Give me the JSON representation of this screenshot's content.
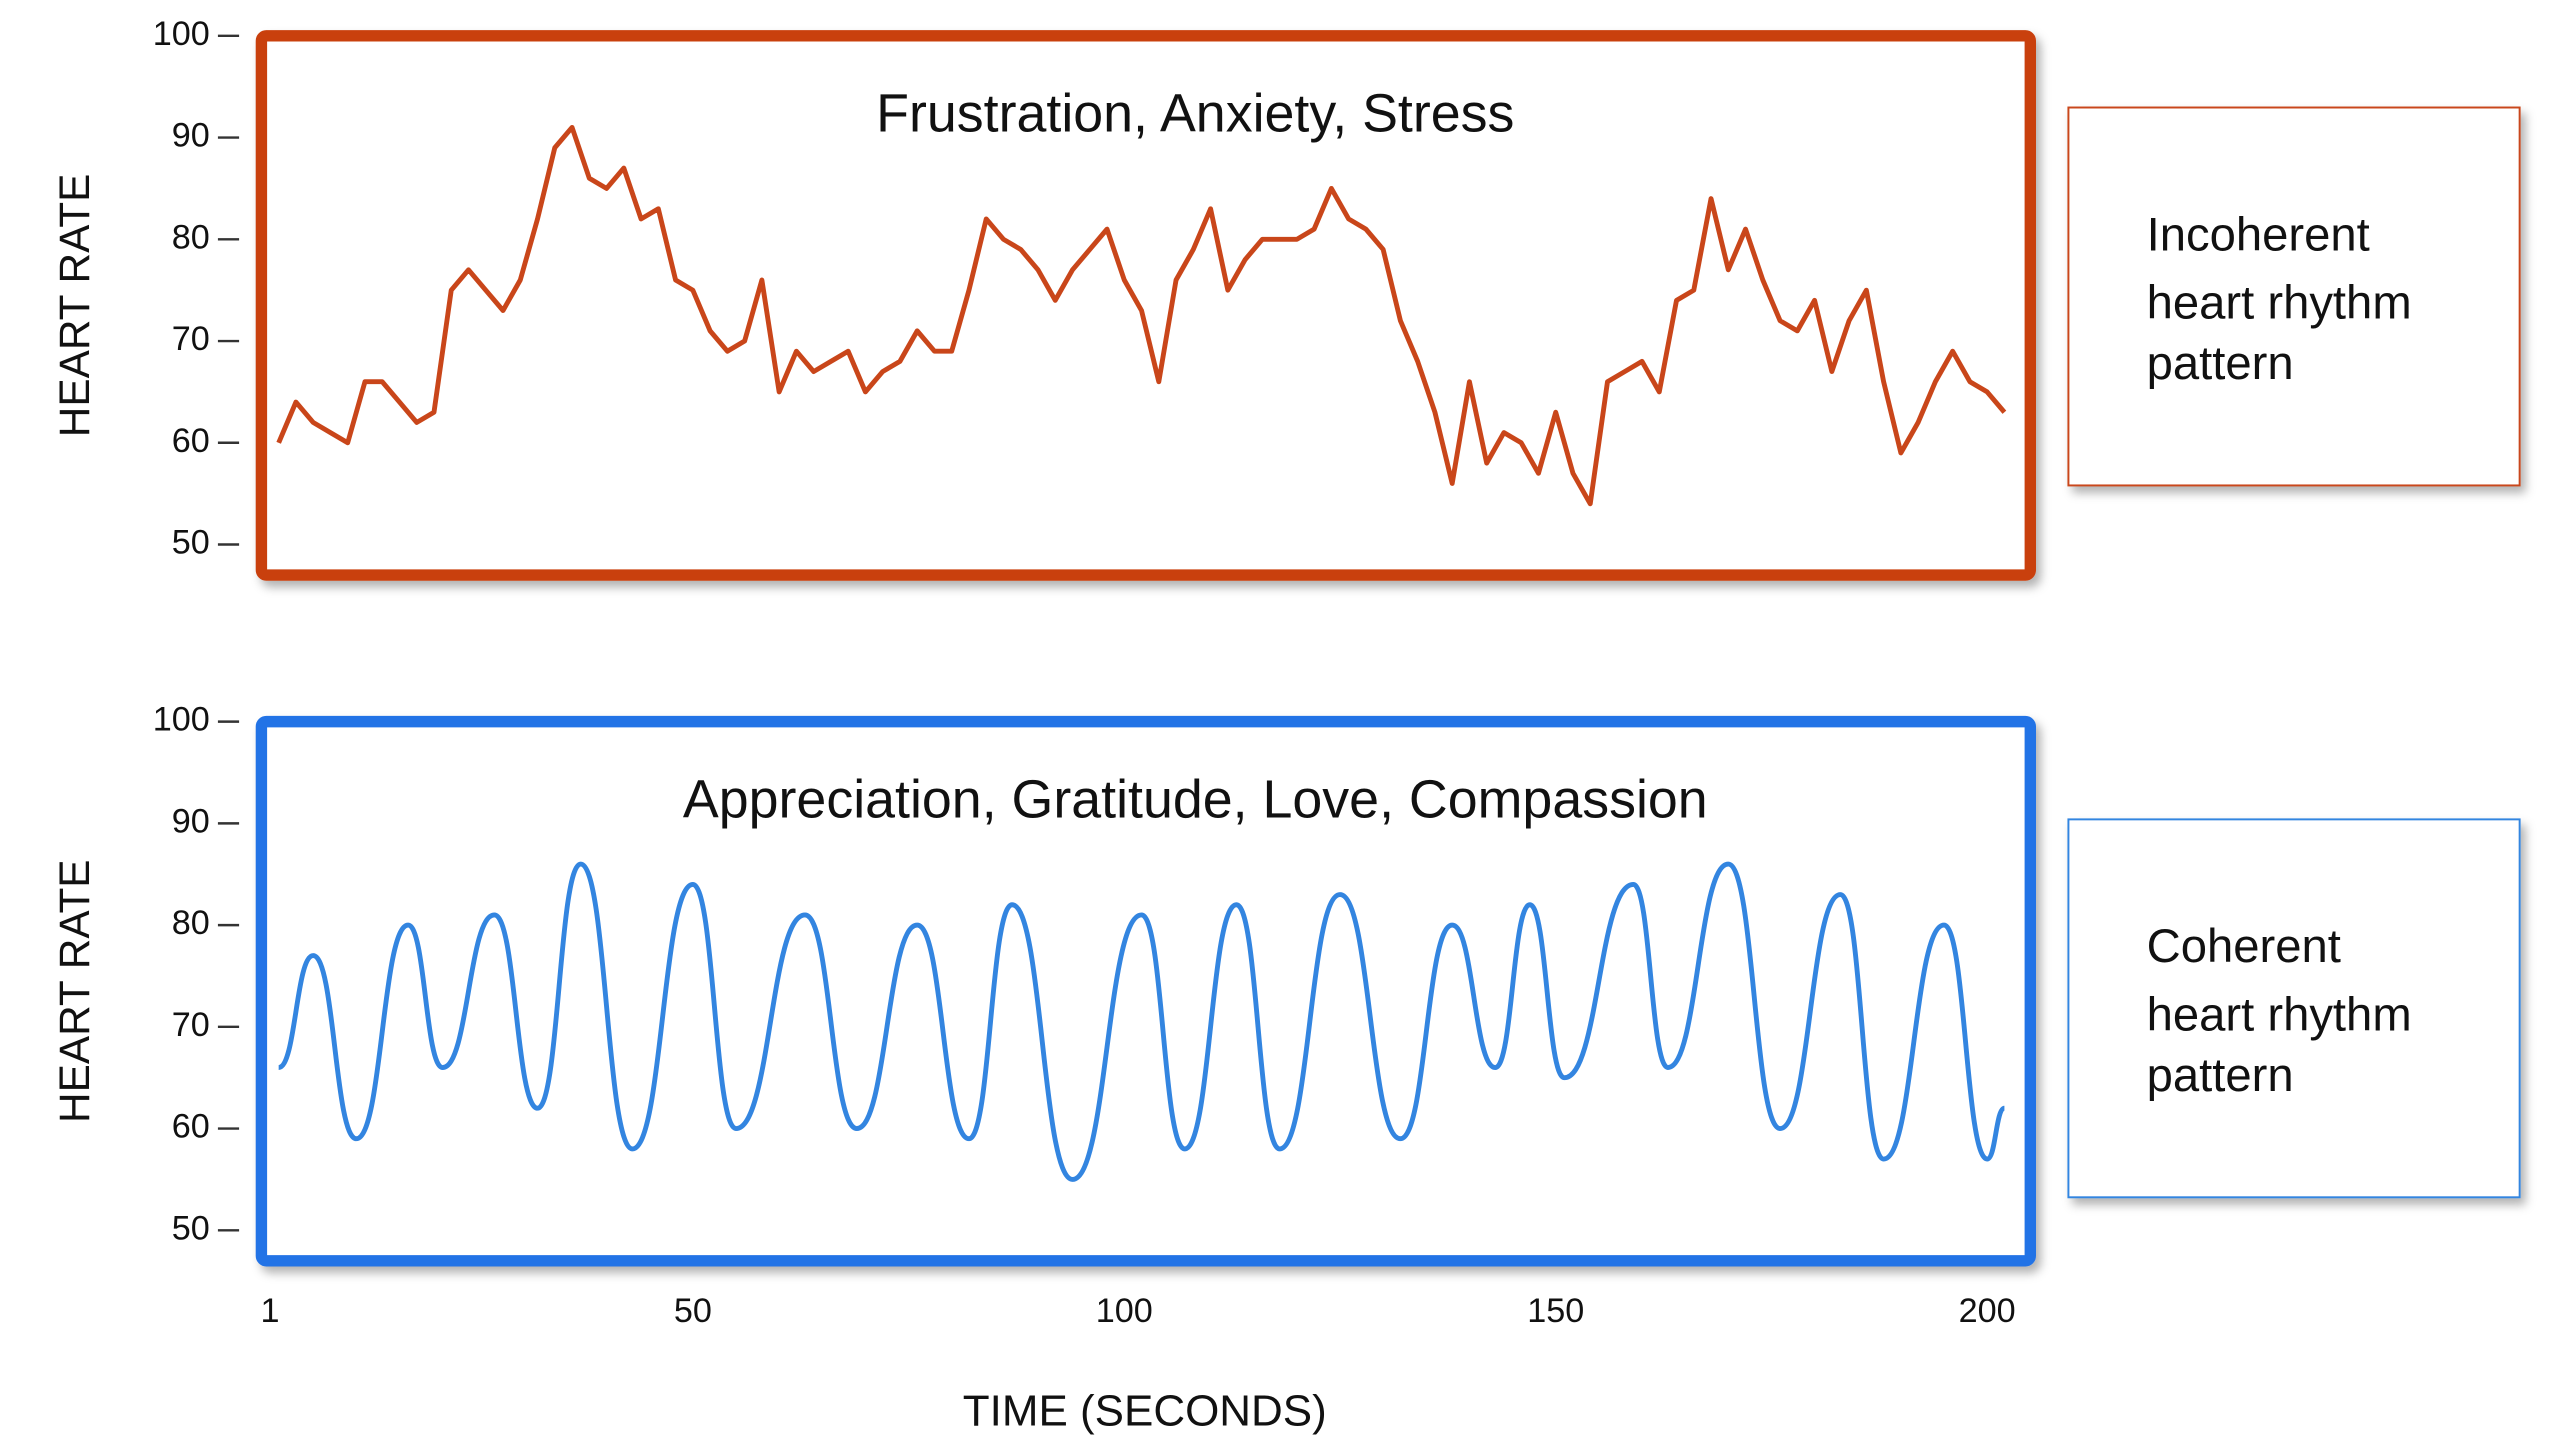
{
  "chart_data": [
    {
      "type": "line",
      "title": "Frustration, Anxiety, Stress",
      "y_label": "HEART RATE",
      "annotation": [
        "Incoherent",
        "heart rhythm",
        "pattern"
      ],
      "color": "#c9461a",
      "frame_color": "#c9400f",
      "xlim": [
        0,
        205
      ],
      "ylim": [
        47,
        100
      ],
      "yticks": [
        50,
        60,
        70,
        80,
        90,
        100
      ],
      "x": [
        2,
        4,
        6,
        8,
        10,
        12,
        14,
        16,
        18,
        20,
        22,
        24,
        26,
        28,
        30,
        32,
        34,
        36,
        38,
        40,
        42,
        44,
        46,
        48,
        50,
        52,
        54,
        56,
        58,
        60,
        62,
        64,
        66,
        68,
        70,
        72,
        74,
        76,
        78,
        80,
        82,
        84,
        86,
        88,
        90,
        92,
        94,
        96,
        98,
        100,
        102,
        104,
        106,
        108,
        110,
        112,
        114,
        116,
        118,
        120,
        122,
        124,
        126,
        128,
        130,
        132,
        134,
        136,
        138,
        140,
        142,
        144,
        146,
        148,
        150,
        152,
        154,
        156,
        158,
        160,
        162,
        164,
        166,
        168,
        170,
        172,
        174,
        176,
        178,
        180,
        182,
        184,
        186,
        188,
        190,
        192,
        194,
        196,
        198,
        200,
        202
      ],
      "values": [
        60,
        64,
        62,
        61,
        60,
        66,
        66,
        64,
        62,
        63,
        75,
        77,
        75,
        73,
        76,
        82,
        89,
        91,
        86,
        85,
        87,
        82,
        83,
        76,
        75,
        71,
        69,
        70,
        76,
        65,
        69,
        67,
        68,
        69,
        65,
        67,
        68,
        71,
        69,
        69,
        75,
        82,
        80,
        79,
        77,
        74,
        77,
        79,
        81,
        76,
        73,
        66,
        76,
        79,
        83,
        75,
        78,
        80,
        80,
        80,
        81,
        85,
        82,
        81,
        79,
        72,
        68,
        63,
        56,
        66,
        58,
        61,
        60,
        57,
        63,
        57,
        54,
        66,
        67,
        68,
        65,
        74,
        75,
        84,
        77,
        81,
        76,
        72,
        71,
        74,
        67,
        72,
        75,
        66,
        59,
        62,
        66,
        69,
        66,
        65,
        63
      ]
    },
    {
      "type": "line",
      "title": "Appreciation, Gratitude, Love, Compassion",
      "y_label": "HEART RATE",
      "annotation": [
        "Coherent",
        "heart rhythm",
        "pattern"
      ],
      "color": "#3385e0",
      "frame_color": "#2473e6",
      "smooth": true,
      "x_label": "TIME (SECONDS)",
      "xlim": [
        0,
        205
      ],
      "xticks": [
        1,
        50,
        100,
        150,
        200
      ],
      "ylim": [
        47,
        100
      ],
      "yticks": [
        50,
        60,
        70,
        80,
        90,
        100
      ],
      "x": [
        2,
        6,
        11,
        17,
        21,
        27,
        32,
        37,
        43,
        50,
        55,
        63,
        69,
        76,
        82,
        87,
        94,
        102,
        107,
        113,
        118,
        125,
        132,
        138,
        143,
        147,
        151,
        159,
        163,
        170,
        176,
        183,
        188,
        195,
        200,
        202
      ],
      "values": [
        66,
        77,
        59,
        80,
        66,
        81,
        62,
        86,
        58,
        84,
        60,
        81,
        60,
        80,
        59,
        82,
        55,
        81,
        58,
        82,
        58,
        83,
        59,
        80,
        66,
        82,
        65,
        84,
        66,
        86,
        60,
        83,
        57,
        80,
        57,
        62
      ]
    }
  ]
}
